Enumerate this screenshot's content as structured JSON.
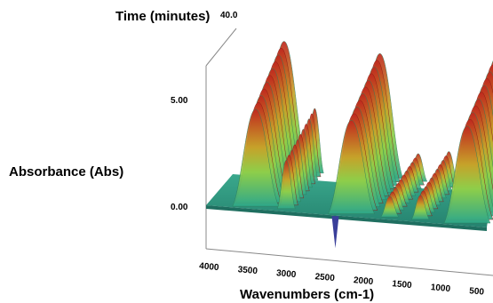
{
  "chart_data": {
    "type": "area",
    "subtype": "3d-waterfall",
    "title": "",
    "xlabel": "Wavenumbers (cm-1)",
    "ylabel": "Absorbance (Abs)",
    "zlabel": "Time (minutes)",
    "x_ticks": [
      "4000",
      "3500",
      "3000",
      "2500",
      "2000",
      "1500",
      "1000",
      "500"
    ],
    "y_ticks": [
      "0.00",
      "5.00"
    ],
    "z_ticks": [
      "40.0"
    ],
    "xlim": [
      4000,
      500
    ],
    "ylim": [
      0,
      5
    ],
    "zlim": [
      0,
      40
    ],
    "grid": false,
    "peaks": [
      {
        "wavenumber": 3400,
        "absorbance": 5.6
      },
      {
        "wavenumber": 3000,
        "absorbance": 2.8
      },
      {
        "wavenumber": 2150,
        "absorbance": 5.4
      },
      {
        "wavenumber": 1650,
        "absorbance": 1.2
      },
      {
        "wavenumber": 1250,
        "absorbance": 1.4
      },
      {
        "wavenumber": 640,
        "absorbance": 5.6
      }
    ],
    "colors": {
      "base": "#2a8f7b",
      "low": "#3fbf8f",
      "mid": "#c7d236",
      "high": "#c0281e",
      "negative": "#3a3f9a"
    }
  }
}
